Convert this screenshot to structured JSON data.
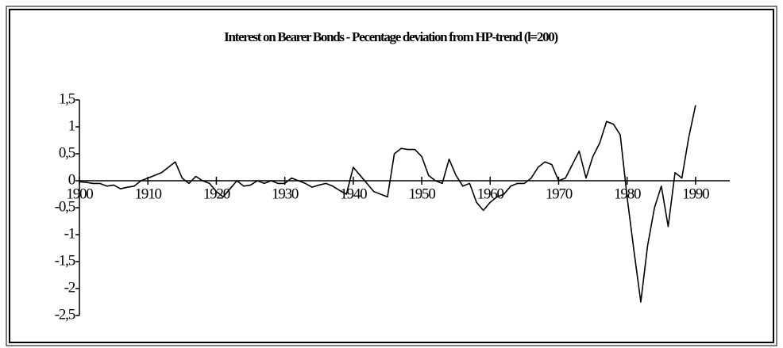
{
  "chart_data": {
    "type": "line",
    "title": "Interest on Bearer Bonds - Pecentage deviation from HP-trend (l=200)",
    "x": [
      1900,
      1901,
      1902,
      1903,
      1904,
      1905,
      1906,
      1907,
      1908,
      1909,
      1910,
      1911,
      1912,
      1913,
      1914,
      1915,
      1916,
      1917,
      1918,
      1919,
      1920,
      1921,
      1922,
      1923,
      1924,
      1925,
      1926,
      1927,
      1928,
      1929,
      1930,
      1931,
      1932,
      1933,
      1934,
      1935,
      1936,
      1937,
      1938,
      1939,
      1940,
      1941,
      1942,
      1943,
      1944,
      1945,
      1946,
      1947,
      1948,
      1949,
      1950,
      1951,
      1952,
      1953,
      1954,
      1955,
      1956,
      1957,
      1958,
      1959,
      1960,
      1961,
      1962,
      1963,
      1964,
      1965,
      1966,
      1967,
      1968,
      1969,
      1970,
      1971,
      1972,
      1973,
      1974,
      1975,
      1976,
      1977,
      1978,
      1979,
      1980,
      1981,
      1982,
      1983,
      1984,
      1985,
      1986,
      1987,
      1988,
      1989,
      1990
    ],
    "series": [
      {
        "color": "#000000",
        "values": [
          -0.02,
          -0.03,
          -0.05,
          -0.05,
          -0.1,
          -0.08,
          -0.15,
          -0.12,
          -0.1,
          0.0,
          0.05,
          0.1,
          0.15,
          0.25,
          0.35,
          0.05,
          -0.05,
          0.08,
          0.0,
          -0.05,
          -0.2,
          -0.3,
          -0.15,
          0.0,
          -0.1,
          -0.08,
          0.0,
          -0.05,
          0.0,
          -0.05,
          -0.05,
          0.05,
          0.0,
          -0.05,
          -0.12,
          -0.08,
          -0.05,
          -0.1,
          -0.18,
          -0.25,
          0.25,
          0.1,
          -0.05,
          -0.2,
          -0.25,
          -0.3,
          0.5,
          0.6,
          0.58,
          0.58,
          0.45,
          0.1,
          0.0,
          -0.05,
          0.4,
          0.1,
          -0.1,
          -0.05,
          -0.4,
          -0.55,
          -0.4,
          -0.3,
          -0.25,
          -0.1,
          -0.05,
          -0.05,
          0.05,
          0.25,
          0.35,
          0.3,
          0.0,
          0.05,
          0.3,
          0.55,
          0.05,
          0.45,
          0.7,
          1.1,
          1.05,
          0.85,
          -0.3,
          -1.3,
          -2.25,
          -1.2,
          -0.5,
          -0.1,
          -0.85,
          0.15,
          0.05,
          0.8,
          1.4
        ]
      }
    ],
    "xlim": [
      1900,
      1995
    ],
    "xticks": [
      1900,
      1910,
      1920,
      1930,
      1940,
      1950,
      1960,
      1970,
      1980,
      1990
    ],
    "ylim": [
      -2.5,
      1.5
    ],
    "yticks": [
      {
        "value": 1.5,
        "label": "1,5"
      },
      1,
      {
        "value": 0.5,
        "label": "0,5"
      },
      0,
      {
        "value": -0.5,
        "label": "-0,5"
      },
      -1,
      {
        "value": -1.5,
        "label": "-1,5"
      },
      -2,
      {
        "value": -2.5,
        "label": "-2,5"
      }
    ]
  }
}
